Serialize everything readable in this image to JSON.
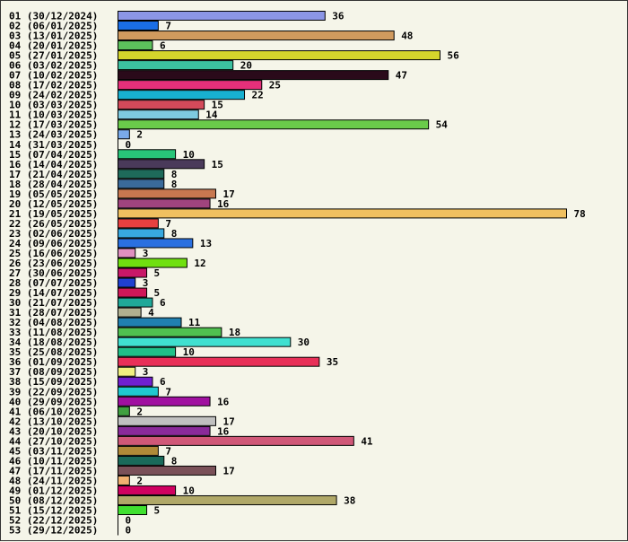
{
  "chart_data": {
    "type": "bar",
    "orientation": "horizontal",
    "title": "",
    "xlabel": "",
    "ylabel": "",
    "xlim": [
      0,
      78
    ],
    "grid": false,
    "legend": "none",
    "categories": [
      "01 (30/12/2024)",
      "02 (06/01/2025)",
      "03 (13/01/2025)",
      "04 (20/01/2025)",
      "05 (27/01/2025)",
      "06 (03/02/2025)",
      "07 (10/02/2025)",
      "08 (17/02/2025)",
      "09 (24/02/2025)",
      "10 (03/03/2025)",
      "11 (10/03/2025)",
      "12 (17/03/2025)",
      "13 (24/03/2025)",
      "14 (31/03/2025)",
      "15 (07/04/2025)",
      "16 (14/04/2025)",
      "17 (21/04/2025)",
      "18 (28/04/2025)",
      "19 (05/05/2025)",
      "20 (12/05/2025)",
      "21 (19/05/2025)",
      "22 (26/05/2025)",
      "23 (02/06/2025)",
      "24 (09/06/2025)",
      "25 (16/06/2025)",
      "26 (23/06/2025)",
      "27 (30/06/2025)",
      "28 (07/07/2025)",
      "29 (14/07/2025)",
      "30 (21/07/2025)",
      "31 (28/07/2025)",
      "32 (04/08/2025)",
      "33 (11/08/2025)",
      "34 (18/08/2025)",
      "35 (25/08/2025)",
      "36 (01/09/2025)",
      "37 (08/09/2025)",
      "38 (15/09/2025)",
      "39 (22/09/2025)",
      "40 (29/09/2025)",
      "41 (06/10/2025)",
      "42 (13/10/2025)",
      "43 (20/10/2025)",
      "44 (27/10/2025)",
      "45 (03/11/2025)",
      "46 (10/11/2025)",
      "47 (17/11/2025)",
      "48 (24/11/2025)",
      "49 (01/12/2025)",
      "50 (08/12/2025)",
      "51 (15/12/2025)",
      "52 (22/12/2025)",
      "53 (29/12/2025)"
    ],
    "values": [
      36,
      7,
      48,
      6,
      56,
      20,
      47,
      25,
      22,
      15,
      14,
      54,
      2,
      0,
      10,
      15,
      8,
      8,
      17,
      16,
      78,
      7,
      8,
      13,
      3,
      12,
      5,
      3,
      5,
      6,
      4,
      11,
      18,
      30,
      10,
      35,
      3,
      6,
      7,
      16,
      2,
      17,
      16,
      41,
      7,
      8,
      17,
      2,
      10,
      38,
      5,
      0,
      0
    ],
    "colors": [
      "#8c96e6",
      "#1a6ee6",
      "#d09a5e",
      "#5cc05c",
      "#d4d42c",
      "#3cc0a0",
      "#2a0a1a",
      "#e6307a",
      "#18b0d0",
      "#d44a5a",
      "#7ecae0",
      "#6acb4a",
      "#7aaaea",
      "#ffffff",
      "#28c478",
      "#4a3a5a",
      "#1e6a5a",
      "#3a6a9a",
      "#c87850",
      "#a0447e",
      "#f0c060",
      "#e84040",
      "#38a8e0",
      "#2a70e0",
      "#e090c0",
      "#70e010",
      "#c81868",
      "#2040d0",
      "#d01858",
      "#20a898",
      "#b0b090",
      "#2080b0",
      "#50c050",
      "#40e0d0",
      "#20c088",
      "#e83058",
      "#f0f080",
      "#7020d0",
      "#20c8d0",
      "#a010a0",
      "#40a040",
      "#c0c0c0",
      "#8a2a9a",
      "#d05878",
      "#b08a38",
      "#1a6a5a",
      "#7a5058",
      "#f0b070",
      "#d00060",
      "#b0a868",
      "#40e030",
      "#ffffff",
      "#ffffff"
    ]
  }
}
